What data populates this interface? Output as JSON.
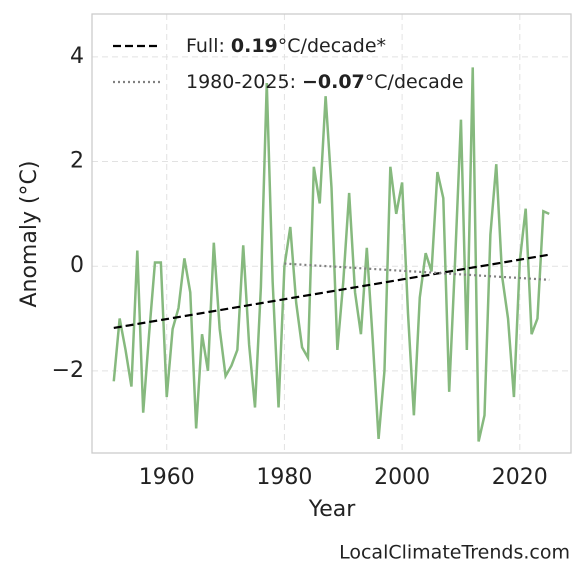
{
  "chart_data": {
    "type": "line",
    "x_label": "Year",
    "y_label": "Anomaly (°C)",
    "x": [
      1951,
      1952,
      1953,
      1954,
      1955,
      1956,
      1957,
      1958,
      1959,
      1960,
      1961,
      1962,
      1963,
      1964,
      1965,
      1966,
      1967,
      1968,
      1969,
      1970,
      1971,
      1972,
      1973,
      1974,
      1975,
      1976,
      1977,
      1978,
      1979,
      1980,
      1981,
      1982,
      1983,
      1984,
      1985,
      1986,
      1987,
      1988,
      1989,
      1990,
      1991,
      1992,
      1993,
      1994,
      1995,
      1996,
      1997,
      1998,
      1999,
      2000,
      2001,
      2002,
      2003,
      2004,
      2005,
      2006,
      2007,
      2008,
      2009,
      2010,
      2011,
      2012,
      2013,
      2014,
      2015,
      2016,
      2017,
      2018,
      2019,
      2020,
      2021,
      2022,
      2023,
      2024,
      2025
    ],
    "series": [
      {
        "color": "#86b97e",
        "style": "solid",
        "values": [
          -2.2,
          -1.0,
          -1.6,
          -2.3,
          0.3,
          -2.8,
          -1.3,
          0.07,
          0.07,
          -2.5,
          -1.2,
          -0.8,
          0.15,
          -0.5,
          -3.1,
          -1.3,
          -2.0,
          0.45,
          -1.2,
          -2.1,
          -1.9,
          -1.6,
          0.4,
          -1.5,
          -2.7,
          -0.4,
          3.5,
          -0.3,
          -2.7,
          0.0,
          0.75,
          -0.7,
          -1.55,
          -1.75,
          1.9,
          1.2,
          3.25,
          1.5,
          -1.6,
          -0.3,
          1.4,
          -0.5,
          -1.3,
          0.35,
          -1.4,
          -3.3,
          -2.0,
          1.9,
          1.0,
          1.6,
          -0.9,
          -2.85,
          -0.6,
          0.25,
          -0.1,
          1.8,
          1.3,
          -2.4,
          0.1,
          2.8,
          -1.6,
          3.8,
          -3.35,
          -2.85,
          0.6,
          1.95,
          -0.2,
          -1.0,
          -2.5,
          0.1,
          1.1,
          -1.3,
          -1.0,
          1.05,
          1.0
        ]
      },
      {
        "name": "Full:",
        "slope_label": "0.19",
        "unit": "°C/decade*",
        "color": "#000000",
        "style": "dashed",
        "x": [
          1951,
          2025
        ],
        "values": [
          -1.18,
          0.22
        ]
      },
      {
        "name": "1980-2025:",
        "slope_label": "−0.07",
        "unit": "°C/decade",
        "color": "#808080",
        "style": "dotted",
        "x": [
          1980,
          2025
        ],
        "values": [
          0.05,
          -0.26
        ]
      }
    ],
    "xlim": [
      1947.3,
      2028.7
    ],
    "xticks": [
      1960,
      1980,
      2000,
      2020
    ],
    "ylim": [
      -3.57,
      4.82
    ],
    "yticks": [
      {
        "value": -2,
        "label": "−2"
      },
      0,
      2,
      4
    ],
    "grid": true,
    "legend": "upper left",
    "credit": "LocalClimateTrends.com"
  }
}
